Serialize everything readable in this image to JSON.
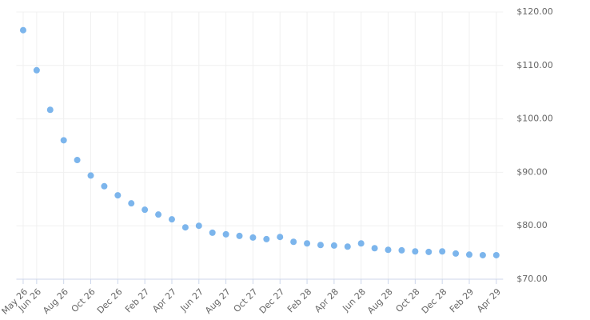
{
  "chart_data": {
    "type": "scatter",
    "categories": [
      "May 26",
      "Jun 26",
      null,
      "Aug 26",
      null,
      "Oct 26",
      null,
      "Dec 26",
      null,
      "Feb 27",
      null,
      "Apr 27",
      null,
      "Jun 27",
      null,
      "Aug 27",
      null,
      "Oct 27",
      null,
      "Dec 27",
      null,
      "Feb 28",
      null,
      "Apr 28",
      null,
      "Jun 28",
      null,
      "Aug 28",
      null,
      "Oct 28",
      null,
      "Dec 28",
      null,
      "Feb 29",
      null,
      "Apr 29"
    ],
    "values": [
      116.6,
      109.1,
      101.7,
      96.0,
      92.3,
      89.4,
      87.4,
      85.7,
      84.2,
      83.0,
      82.1,
      81.2,
      79.7,
      80.0,
      78.7,
      78.4,
      78.1,
      77.8,
      77.5,
      77.9,
      77.0,
      76.7,
      76.4,
      76.3,
      76.1,
      76.7,
      75.8,
      75.5,
      75.4,
      75.2,
      75.1,
      75.2,
      74.8,
      74.6,
      74.5,
      74.5
    ],
    "color": "#7cb5ec",
    "ylim": [
      70,
      120
    ],
    "yticks": [
      {
        "value": 70,
        "label": "$70.00"
      },
      {
        "value": 80,
        "label": "$80.00"
      },
      {
        "value": 90,
        "label": "$90.00"
      },
      {
        "value": 100,
        "label": "$100.00"
      },
      {
        "value": 110,
        "label": "$110.00"
      },
      {
        "value": 120,
        "label": "$120.00"
      }
    ],
    "grid": true
  }
}
